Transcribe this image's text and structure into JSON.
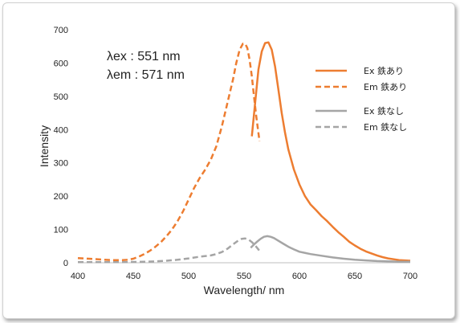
{
  "chart_data": {
    "type": "line",
    "xlabel": "Wavelength/ nm",
    "ylabel": "Intensity",
    "xlim": [
      400,
      700
    ],
    "ylim": [
      0,
      700
    ],
    "x_ticks": [
      400,
      450,
      500,
      550,
      600,
      650,
      700
    ],
    "y_ticks": [
      0,
      100,
      200,
      300,
      400,
      500,
      600,
      700
    ],
    "grid": false,
    "legend_position": "right",
    "annotations": [
      "λex : 551 nm",
      "λem : 571 nm"
    ],
    "series": [
      {
        "name": "Ex 鉄あり",
        "color": "#ed7d31",
        "dash": "solid",
        "points": [
          [
            557,
            380
          ],
          [
            560,
            480
          ],
          [
            563,
            580
          ],
          [
            566,
            635
          ],
          [
            569,
            660
          ],
          [
            572,
            662
          ],
          [
            575,
            640
          ],
          [
            578,
            590
          ],
          [
            581,
            520
          ],
          [
            584,
            450
          ],
          [
            587,
            390
          ],
          [
            590,
            340
          ],
          [
            595,
            280
          ],
          [
            600,
            235
          ],
          [
            605,
            200
          ],
          [
            610,
            175
          ],
          [
            615,
            158
          ],
          [
            620,
            140
          ],
          [
            625,
            125
          ],
          [
            630,
            108
          ],
          [
            635,
            92
          ],
          [
            640,
            78
          ],
          [
            645,
            63
          ],
          [
            650,
            52
          ],
          [
            655,
            42
          ],
          [
            660,
            34
          ],
          [
            665,
            28
          ],
          [
            670,
            22
          ],
          [
            675,
            17
          ],
          [
            680,
            13
          ],
          [
            690,
            8
          ],
          [
            700,
            6
          ]
        ]
      },
      {
        "name": "Em 鉄あり",
        "color": "#ed7d31",
        "dash": "dashed",
        "points": [
          [
            400,
            14
          ],
          [
            410,
            12
          ],
          [
            420,
            10
          ],
          [
            430,
            8
          ],
          [
            440,
            8
          ],
          [
            445,
            9
          ],
          [
            450,
            12
          ],
          [
            455,
            18
          ],
          [
            460,
            26
          ],
          [
            465,
            36
          ],
          [
            470,
            48
          ],
          [
            475,
            62
          ],
          [
            480,
            80
          ],
          [
            485,
            100
          ],
          [
            490,
            125
          ],
          [
            495,
            155
          ],
          [
            500,
            190
          ],
          [
            505,
            225
          ],
          [
            510,
            255
          ],
          [
            515,
            280
          ],
          [
            520,
            310
          ],
          [
            525,
            350
          ],
          [
            530,
            410
          ],
          [
            535,
            480
          ],
          [
            540,
            550
          ],
          [
            543,
            600
          ],
          [
            546,
            640
          ],
          [
            549,
            658
          ],
          [
            551,
            658
          ],
          [
            553,
            645
          ],
          [
            555,
            610
          ],
          [
            557,
            560
          ],
          [
            559,
            500
          ],
          [
            561,
            440
          ],
          [
            563,
            390
          ],
          [
            564,
            365
          ]
        ]
      },
      {
        "name": "Ex 鉄なし",
        "color": "#a5a5a5",
        "dash": "solid",
        "points": [
          [
            556,
            45
          ],
          [
            559,
            55
          ],
          [
            562,
            64
          ],
          [
            565,
            72
          ],
          [
            568,
            78
          ],
          [
            571,
            80
          ],
          [
            574,
            78
          ],
          [
            577,
            74
          ],
          [
            580,
            68
          ],
          [
            585,
            58
          ],
          [
            590,
            48
          ],
          [
            595,
            40
          ],
          [
            600,
            33
          ],
          [
            610,
            26
          ],
          [
            620,
            21
          ],
          [
            630,
            16
          ],
          [
            640,
            12
          ],
          [
            650,
            9
          ],
          [
            660,
            7
          ],
          [
            670,
            5
          ],
          [
            680,
            4
          ],
          [
            690,
            3
          ],
          [
            700,
            3
          ]
        ]
      },
      {
        "name": "Em 鉄なし",
        "color": "#a5a5a5",
        "dash": "dashed",
        "points": [
          [
            400,
            2
          ],
          [
            420,
            2
          ],
          [
            440,
            2
          ],
          [
            460,
            3
          ],
          [
            470,
            4
          ],
          [
            480,
            6
          ],
          [
            490,
            9
          ],
          [
            500,
            13
          ],
          [
            510,
            18
          ],
          [
            520,
            22
          ],
          [
            525,
            26
          ],
          [
            530,
            32
          ],
          [
            535,
            42
          ],
          [
            540,
            55
          ],
          [
            545,
            67
          ],
          [
            548,
            72
          ],
          [
            551,
            73
          ],
          [
            554,
            70
          ],
          [
            557,
            62
          ],
          [
            560,
            52
          ],
          [
            563,
            40
          ],
          [
            565,
            30
          ]
        ]
      }
    ]
  }
}
